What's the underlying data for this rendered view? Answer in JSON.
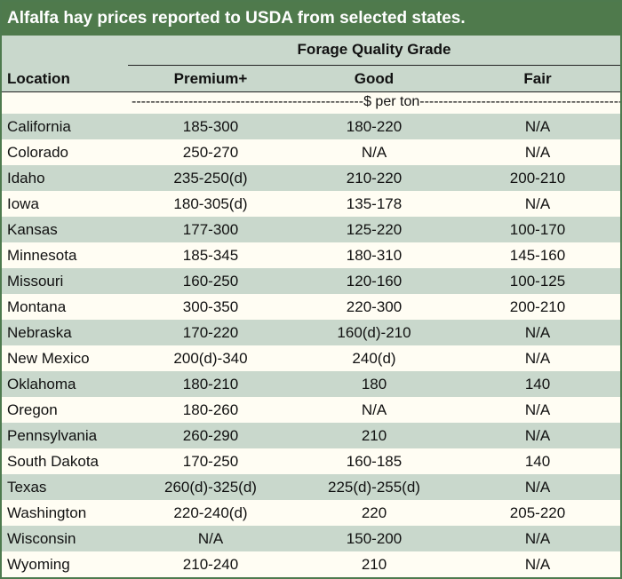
{
  "title": "Alfalfa hay prices reported to USDA from selected states.",
  "group_header": "Forage Quality Grade",
  "columns": {
    "location": "Location",
    "premium": "Premium+",
    "good": "Good",
    "fair": "Fair"
  },
  "units": "-------------------------------------------------$ per ton----------------------------------------------------",
  "colors": {
    "title_bg": "#4f7a4c",
    "band": "#c9d8cc",
    "paper": "#fffdf3"
  },
  "rows": [
    {
      "location": "California",
      "premium": "185-300",
      "good": "180-220",
      "fair": "N/A"
    },
    {
      "location": "Colorado",
      "premium": "250-270",
      "good": "N/A",
      "fair": "N/A"
    },
    {
      "location": "Idaho",
      "premium": "235-250(d)",
      "good": "210-220",
      "fair": "200-210"
    },
    {
      "location": "Iowa",
      "premium": "180-305(d)",
      "good": "135-178",
      "fair": "N/A"
    },
    {
      "location": "Kansas",
      "premium": "177-300",
      "good": "125-220",
      "fair": "100-170"
    },
    {
      "location": "Minnesota",
      "premium": "185-345",
      "good": "180-310",
      "fair": "145-160"
    },
    {
      "location": "Missouri",
      "premium": "160-250",
      "good": "120-160",
      "fair": "100-125"
    },
    {
      "location": "Montana",
      "premium": "300-350",
      "good": "220-300",
      "fair": "200-210"
    },
    {
      "location": "Nebraska",
      "premium": "170-220",
      "good": "160(d)-210",
      "fair": "N/A"
    },
    {
      "location": "New Mexico",
      "premium": "200(d)-340",
      "good": "240(d)",
      "fair": "N/A"
    },
    {
      "location": "Oklahoma",
      "premium": "180-210",
      "good": "180",
      "fair": "140"
    },
    {
      "location": "Oregon",
      "premium": "180-260",
      "good": "N/A",
      "fair": "N/A"
    },
    {
      "location": "Pennsylvania",
      "premium": "260-290",
      "good": "210",
      "fair": "N/A"
    },
    {
      "location": "South Dakota",
      "premium": "170-250",
      "good": "160-185",
      "fair": "140"
    },
    {
      "location": "Texas",
      "premium": "260(d)-325(d)",
      "good": "225(d)-255(d)",
      "fair": "N/A"
    },
    {
      "location": "Washington",
      "premium": "220-240(d)",
      "good": "220",
      "fair": "205-220"
    },
    {
      "location": "Wisconsin",
      "premium": "N/A",
      "good": "150-200",
      "fair": "N/A"
    },
    {
      "location": "Wyoming",
      "premium": "210-240",
      "good": "210",
      "fair": "N/A"
    }
  ]
}
